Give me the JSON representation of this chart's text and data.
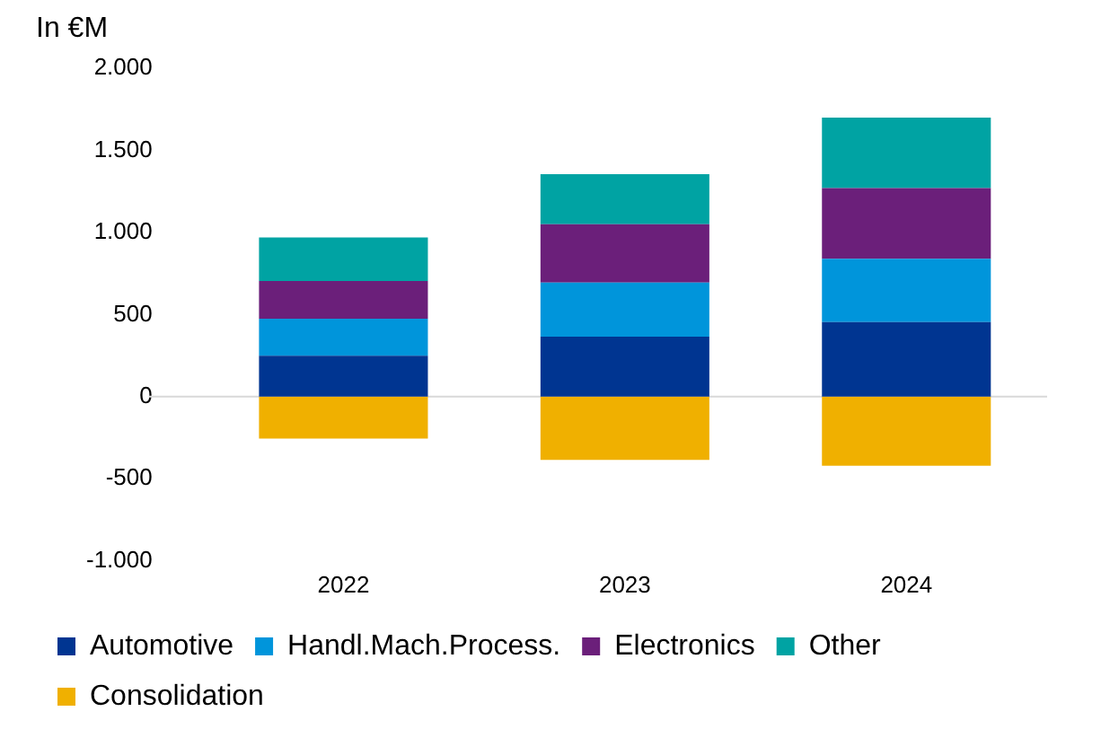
{
  "chart_data": {
    "type": "bar",
    "ylabel": "In €M",
    "stacked": true,
    "categories": [
      "2022",
      "2023",
      "2024"
    ],
    "series": [
      {
        "name": "Automotive",
        "color": "#003591",
        "values": [
          250,
          365,
          455
        ]
      },
      {
        "name": "Handl.Mach.Process.",
        "color": "#0095db",
        "values": [
          225,
          330,
          385
        ]
      },
      {
        "name": "Electronics",
        "color": "#6b1f7a",
        "values": [
          230,
          355,
          430
        ]
      },
      {
        "name": "Other",
        "color": "#00a3a3",
        "values": [
          265,
          305,
          430
        ]
      },
      {
        "name": "Consolidation",
        "color": "#f0b000",
        "values": [
          -255,
          -385,
          -420
        ]
      }
    ],
    "ylim": [
      -1000,
      2000
    ],
    "yticks": [
      {
        "value": -1000,
        "label": "-1.000"
      },
      -500,
      0,
      500,
      {
        "value": 1000,
        "label": "1.000"
      },
      {
        "value": 1500,
        "label": "1.500"
      },
      {
        "value": 2000,
        "label": "2.000"
      }
    ],
    "ref_lines": [
      {
        "axis": "y",
        "value": 0,
        "color": "#d9d9d9"
      }
    ],
    "grid": false,
    "legend": "bottom"
  }
}
